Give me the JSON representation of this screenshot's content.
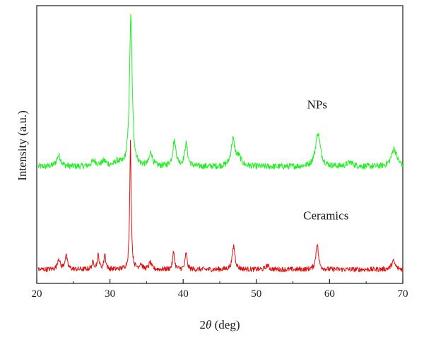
{
  "chart_data": {
    "type": "line",
    "title": "",
    "xlabel_prefix": "2",
    "xlabel_symbol": "θ",
    "xlabel_suffix": " (deg)",
    "ylabel": "Intensity (a.u.)",
    "xlim": [
      20,
      70
    ],
    "ylim": [
      0,
      100
    ],
    "x_ticks": [
      20,
      30,
      40,
      50,
      60,
      70
    ],
    "x_tick_labels": [
      "20",
      "30",
      "40",
      "50",
      "60",
      "70"
    ],
    "y_ticks_shown": false,
    "grid": false,
    "legend": "none",
    "series": [
      {
        "name": "NPs",
        "color": "#22ee22",
        "baseline": 42,
        "noise": 1.1,
        "peaks": [
          {
            "x": 23.0,
            "h": 4.0,
            "w": 0.35
          },
          {
            "x": 27.8,
            "h": 2.0,
            "w": 0.4
          },
          {
            "x": 29.2,
            "h": 1.8,
            "w": 0.4
          },
          {
            "x": 31.0,
            "h": 1.5,
            "w": 0.4
          },
          {
            "x": 32.85,
            "h": 54.0,
            "w": 0.22
          },
          {
            "x": 35.6,
            "h": 5.0,
            "w": 0.25
          },
          {
            "x": 38.8,
            "h": 9.0,
            "w": 0.28
          },
          {
            "x": 40.4,
            "h": 8.0,
            "w": 0.25
          },
          {
            "x": 46.8,
            "h": 9.5,
            "w": 0.32
          },
          {
            "x": 47.6,
            "h": 3.0,
            "w": 0.4
          },
          {
            "x": 58.4,
            "h": 12.0,
            "w": 0.4
          },
          {
            "x": 62.8,
            "h": 1.5,
            "w": 0.5
          },
          {
            "x": 68.8,
            "h": 6.5,
            "w": 0.45
          }
        ]
      },
      {
        "name": "Ceramics",
        "color": "#dd1111",
        "baseline": 5,
        "noise": 0.9,
        "peaks": [
          {
            "x": 23.0,
            "h": 4.0,
            "w": 0.2
          },
          {
            "x": 24.0,
            "h": 5.0,
            "w": 0.2
          },
          {
            "x": 27.7,
            "h": 2.5,
            "w": 0.2
          },
          {
            "x": 28.4,
            "h": 5.0,
            "w": 0.15
          },
          {
            "x": 29.3,
            "h": 5.5,
            "w": 0.15
          },
          {
            "x": 32.8,
            "h": 46.0,
            "w": 0.12
          },
          {
            "x": 34.2,
            "h": 2.0,
            "w": 0.2
          },
          {
            "x": 35.5,
            "h": 2.5,
            "w": 0.2
          },
          {
            "x": 38.7,
            "h": 6.5,
            "w": 0.15
          },
          {
            "x": 40.4,
            "h": 6.0,
            "w": 0.15
          },
          {
            "x": 46.9,
            "h": 8.5,
            "w": 0.22
          },
          {
            "x": 51.5,
            "h": 1.5,
            "w": 0.25
          },
          {
            "x": 58.3,
            "h": 9.5,
            "w": 0.2
          },
          {
            "x": 68.7,
            "h": 3.0,
            "w": 0.3
          }
        ]
      }
    ],
    "annotations": [
      {
        "text": "NPs",
        "x": 58.3,
        "y": 63
      },
      {
        "text": "Ceramics",
        "x": 59.5,
        "y": 23
      }
    ]
  }
}
